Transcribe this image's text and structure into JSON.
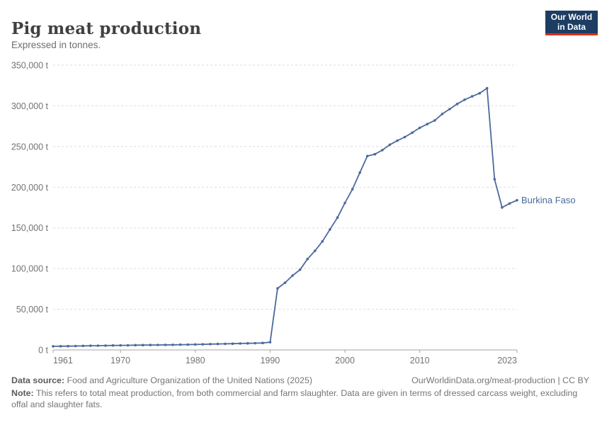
{
  "header": {
    "title": "Pig meat production",
    "subtitle": "Expressed in tonnes.",
    "logo_line1": "Our World",
    "logo_line2": "in Data"
  },
  "chart_data": {
    "type": "line",
    "title": "Pig meat production",
    "unit": "t",
    "entity_label": "Burkina Faso",
    "line_color": "#4c6a9c",
    "grid": "horizontal-dashed",
    "legend_position": "end-of-line",
    "xlim": [
      1961,
      2023
    ],
    "ylim": [
      0,
      350000
    ],
    "x_ticks": [
      1961,
      1970,
      1980,
      1990,
      2000,
      2010,
      2023
    ],
    "y_ticks": [
      0,
      50000,
      100000,
      150000,
      200000,
      250000,
      300000,
      350000
    ],
    "y_tick_suffix": " t",
    "series": [
      {
        "name": "Burkina Faso",
        "color": "#4c6a9c",
        "points": [
          [
            1961,
            4400
          ],
          [
            1962,
            4500
          ],
          [
            1963,
            4600
          ],
          [
            1964,
            4800
          ],
          [
            1965,
            5000
          ],
          [
            1966,
            5100
          ],
          [
            1967,
            5200
          ],
          [
            1968,
            5300
          ],
          [
            1969,
            5450
          ],
          [
            1970,
            5600
          ],
          [
            1971,
            5700
          ],
          [
            1972,
            5800
          ],
          [
            1973,
            5900
          ],
          [
            1974,
            6000
          ],
          [
            1975,
            6100
          ],
          [
            1976,
            6200
          ],
          [
            1977,
            6300
          ],
          [
            1978,
            6400
          ],
          [
            1979,
            6500
          ],
          [
            1980,
            6700
          ],
          [
            1981,
            6900
          ],
          [
            1982,
            7100
          ],
          [
            1983,
            7300
          ],
          [
            1984,
            7500
          ],
          [
            1985,
            7700
          ],
          [
            1986,
            7900
          ],
          [
            1987,
            8100
          ],
          [
            1988,
            8300
          ],
          [
            1989,
            8500
          ],
          [
            1990,
            9500
          ],
          [
            1991,
            75700
          ],
          [
            1992,
            82600
          ],
          [
            1993,
            91400
          ],
          [
            1994,
            98600
          ],
          [
            1995,
            111700
          ],
          [
            1996,
            121900
          ],
          [
            1997,
            133500
          ],
          [
            1998,
            148100
          ],
          [
            1999,
            162600
          ],
          [
            2000,
            180700
          ],
          [
            2001,
            197500
          ],
          [
            2002,
            217900
          ],
          [
            2003,
            238300
          ],
          [
            2004,
            240600
          ],
          [
            2005,
            245600
          ],
          [
            2006,
            252200
          ],
          [
            2007,
            257200
          ],
          [
            2008,
            261600
          ],
          [
            2009,
            267000
          ],
          [
            2010,
            273000
          ],
          [
            2011,
            277600
          ],
          [
            2012,
            282000
          ],
          [
            2013,
            290000
          ],
          [
            2014,
            296000
          ],
          [
            2015,
            302300
          ],
          [
            2016,
            307500
          ],
          [
            2017,
            311600
          ],
          [
            2018,
            315400
          ],
          [
            2019,
            321700
          ],
          [
            2020,
            209700
          ],
          [
            2021,
            175100
          ],
          [
            2022,
            180000
          ],
          [
            2023,
            184000
          ]
        ]
      }
    ]
  },
  "footer": {
    "datasource_label": "Data source:",
    "datasource_text": " Food and Agriculture Organization of the United Nations (2025)",
    "link_text": "OurWorldinData.org/meat-production | CC BY",
    "note_label": "Note:",
    "note_text": " This refers to total meat production, from both commercial and farm slaughter. Data are given in terms of dressed carcass weight, excluding offal and slaughter fats."
  }
}
